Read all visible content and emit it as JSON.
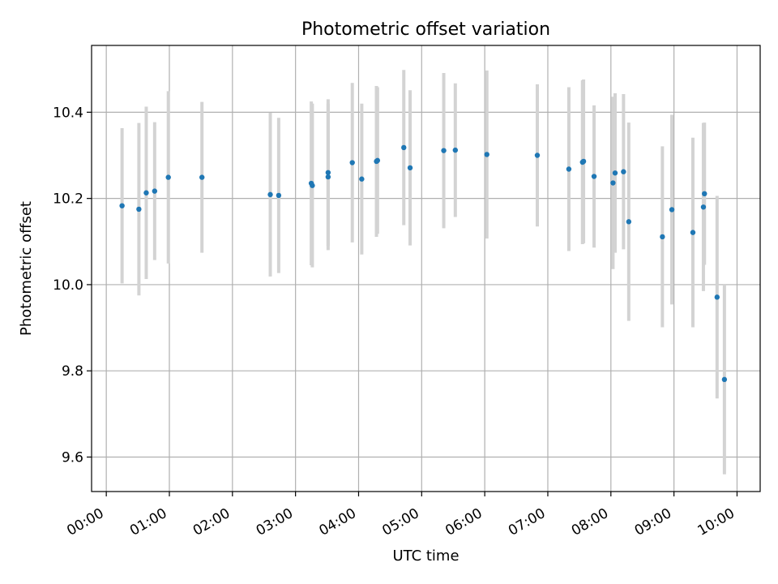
{
  "chart_data": {
    "type": "scatter",
    "title": "Photometric offset variation",
    "xlabel": "UTC time",
    "ylabel": "Photometric offset",
    "x_tick_labels": [
      "00:00",
      "01:00",
      "02:00",
      "03:00",
      "04:00",
      "05:00",
      "06:00",
      "07:00",
      "08:00",
      "09:00",
      "10:00"
    ],
    "y_tick_labels": [
      "9.6",
      "9.8",
      "10.0",
      "10.2",
      "10.4"
    ],
    "xlim": [
      "-00:14",
      "10:22"
    ],
    "ylim": [
      9.52,
      10.555
    ],
    "grid": true,
    "error_bars": true,
    "colors": {
      "points": "#1f77b4",
      "error_bars": "#d3d3d3",
      "grid": "#b0b0b0",
      "axes": "#000000"
    },
    "points": [
      {
        "time": "00:15",
        "y": 10.183,
        "err": 0.18
      },
      {
        "time": "00:31",
        "y": 10.175,
        "err": 0.2
      },
      {
        "time": "00:38",
        "y": 10.213,
        "err": 0.2
      },
      {
        "time": "00:46",
        "y": 10.217,
        "err": 0.16
      },
      {
        "time": "00:59",
        "y": 10.249,
        "err": 0.2
      },
      {
        "time": "01:31",
        "y": 10.249,
        "err": 0.175
      },
      {
        "time": "02:36",
        "y": 10.209,
        "err": 0.19
      },
      {
        "time": "02:44",
        "y": 10.207,
        "err": 0.18
      },
      {
        "time": "03:15",
        "y": 10.235,
        "err": 0.19
      },
      {
        "time": "03:16",
        "y": 10.23,
        "err": 0.19
      },
      {
        "time": "03:31",
        "y": 10.26,
        "err": 0.17
      },
      {
        "time": "03:31",
        "y": 10.25,
        "err": 0.17
      },
      {
        "time": "03:54",
        "y": 10.283,
        "err": 0.185
      },
      {
        "time": "04:03",
        "y": 10.245,
        "err": 0.175
      },
      {
        "time": "04:17",
        "y": 10.286,
        "err": 0.175
      },
      {
        "time": "04:18",
        "y": 10.288,
        "err": 0.17
      },
      {
        "time": "04:43",
        "y": 10.318,
        "err": 0.18
      },
      {
        "time": "04:49",
        "y": 10.271,
        "err": 0.18
      },
      {
        "time": "05:21",
        "y": 10.311,
        "err": 0.18
      },
      {
        "time": "05:32",
        "y": 10.312,
        "err": 0.155
      },
      {
        "time": "06:02",
        "y": 10.302,
        "err": 0.195
      },
      {
        "time": "06:50",
        "y": 10.3,
        "err": 0.165
      },
      {
        "time": "07:20",
        "y": 10.268,
        "err": 0.19
      },
      {
        "time": "07:33",
        "y": 10.284,
        "err": 0.19
      },
      {
        "time": "07:34",
        "y": 10.286,
        "err": 0.19
      },
      {
        "time": "07:44",
        "y": 10.251,
        "err": 0.165
      },
      {
        "time": "08:02",
        "y": 10.236,
        "err": 0.2
      },
      {
        "time": "08:04",
        "y": 10.259,
        "err": 0.185
      },
      {
        "time": "08:12",
        "y": 10.262,
        "err": 0.18
      },
      {
        "time": "08:17",
        "y": 10.146,
        "err": 0.23
      },
      {
        "time": "08:49",
        "y": 10.111,
        "err": 0.21
      },
      {
        "time": "08:58",
        "y": 10.174,
        "err": 0.22
      },
      {
        "time": "09:18",
        "y": 10.121,
        "err": 0.22
      },
      {
        "time": "09:28",
        "y": 10.18,
        "err": 0.195
      },
      {
        "time": "09:29",
        "y": 10.211,
        "err": 0.165
      },
      {
        "time": "09:41",
        "y": 9.971,
        "err": 0.235
      },
      {
        "time": "09:48",
        "y": 9.78,
        "err": 0.22
      }
    ]
  }
}
